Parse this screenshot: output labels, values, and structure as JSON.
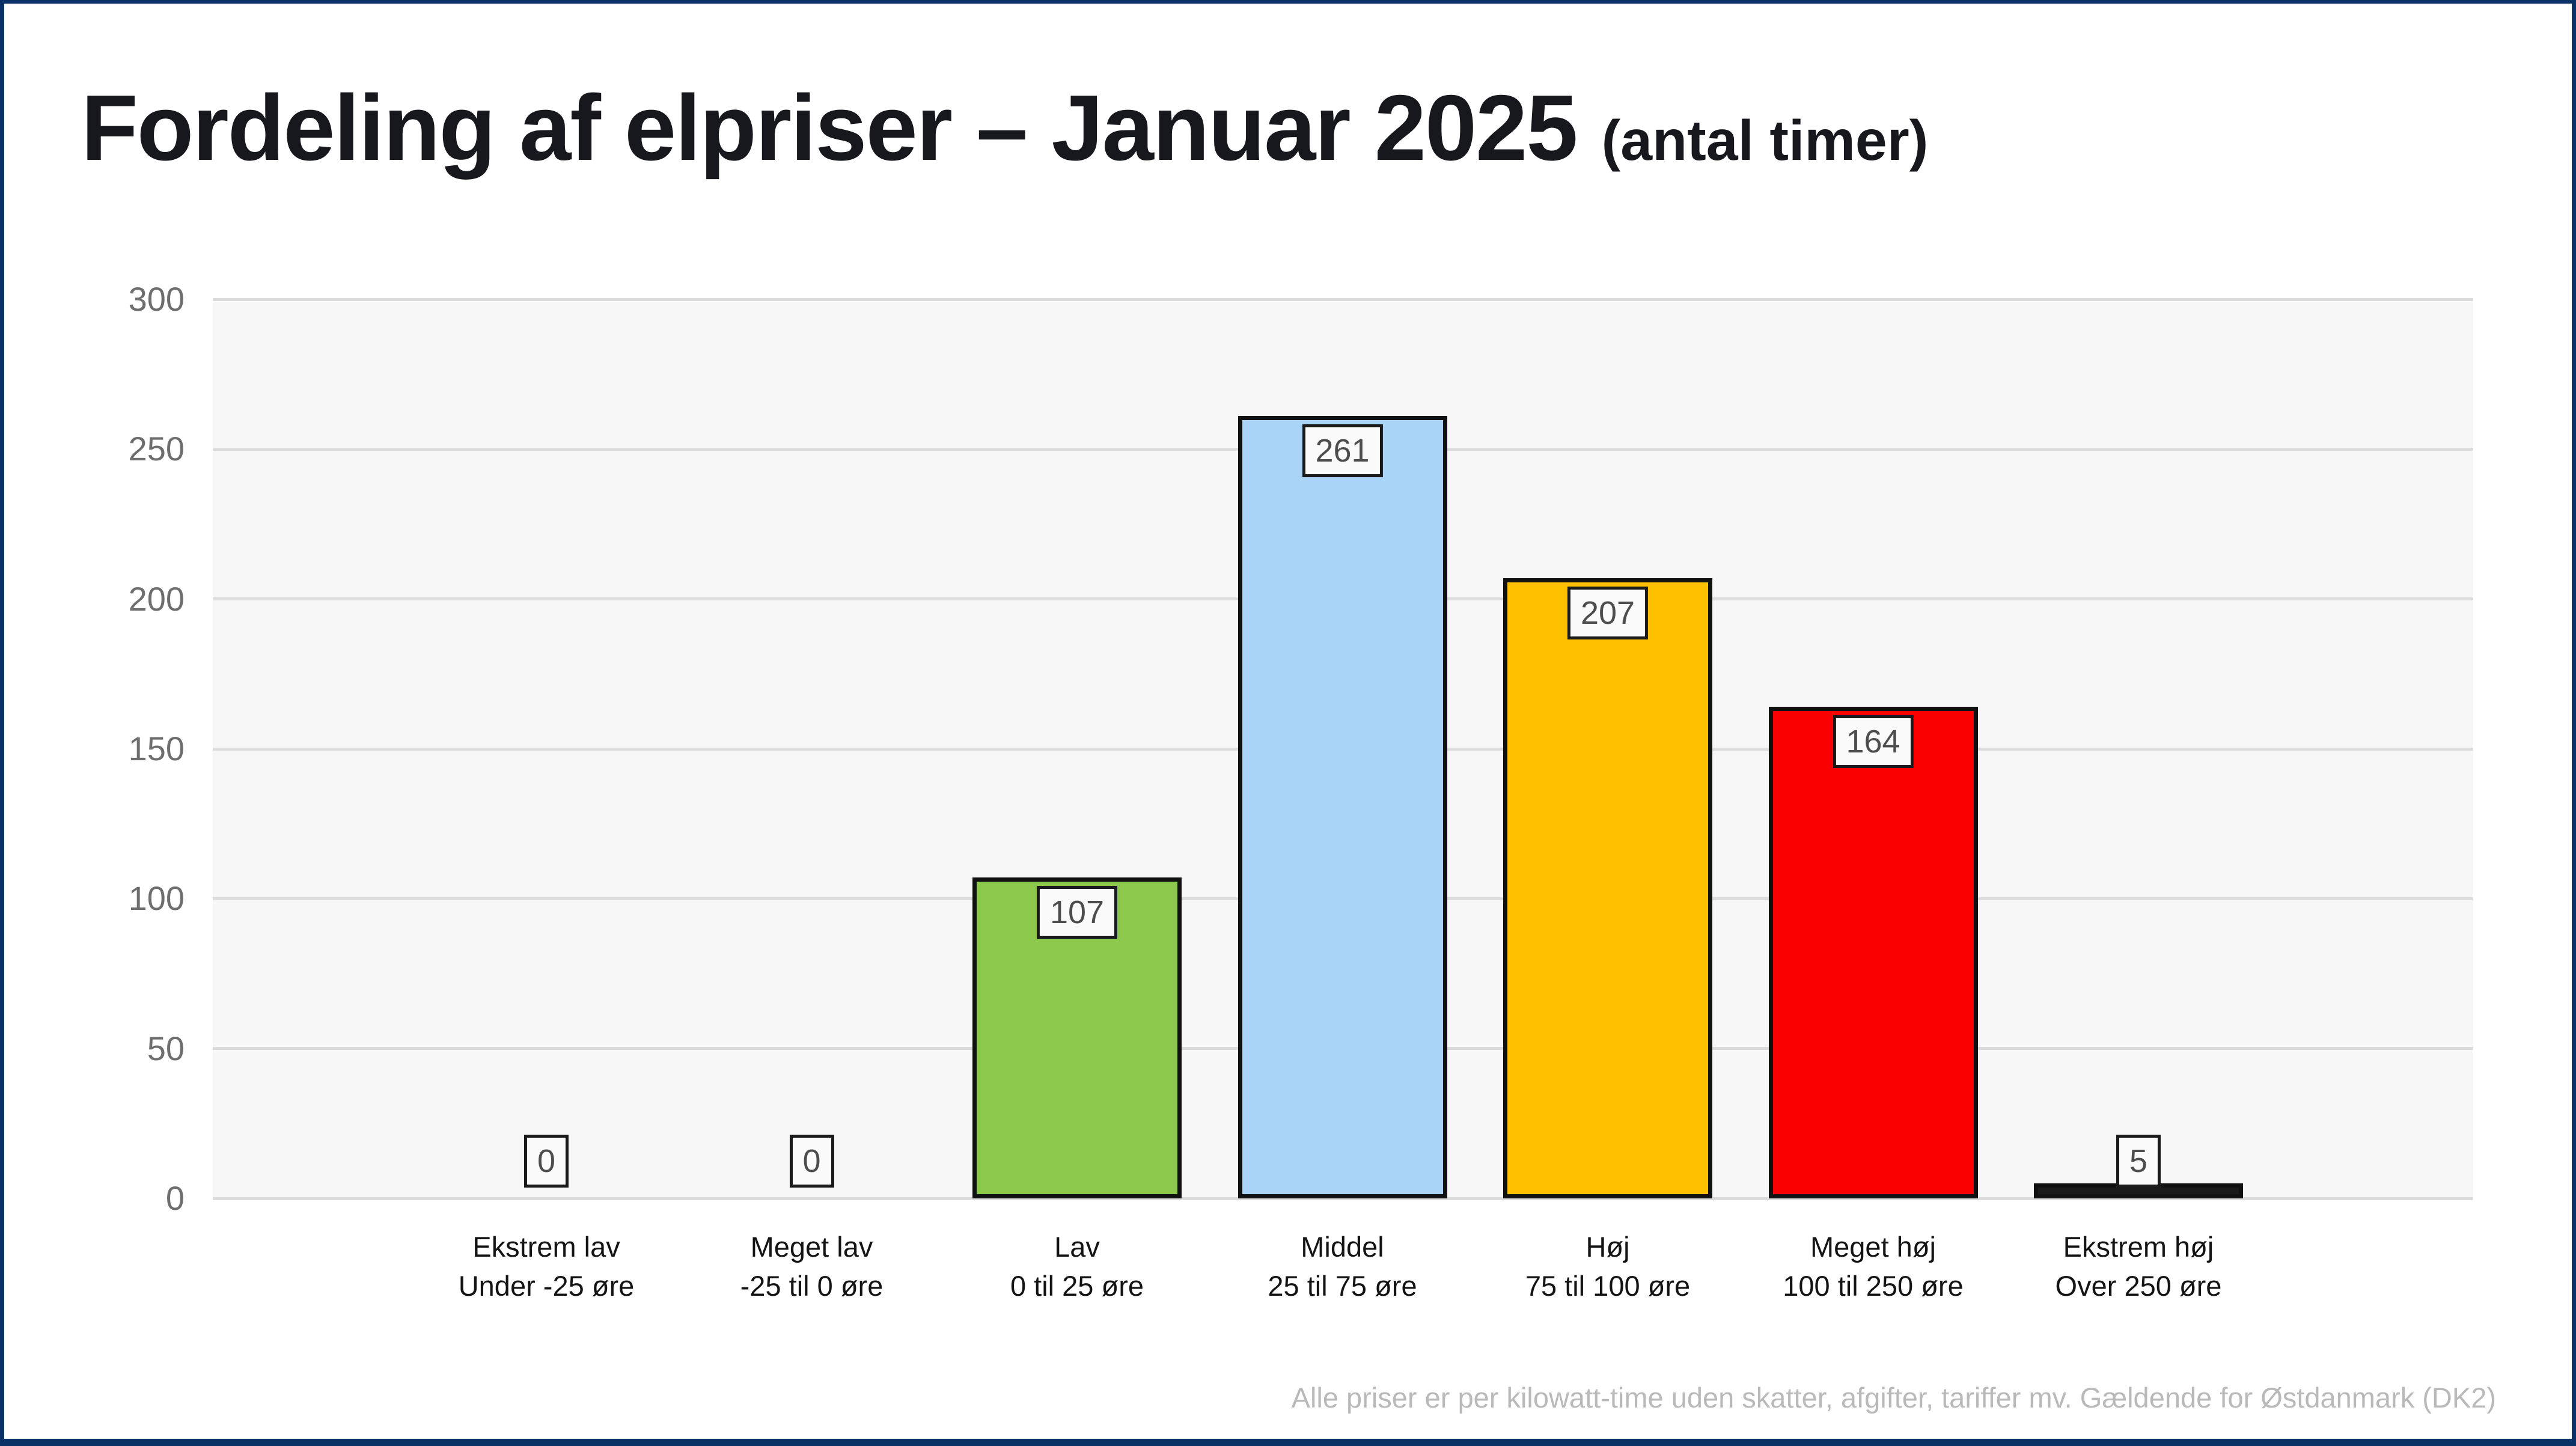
{
  "header": {
    "title": "Fordeling af elpriser – Januar 2025",
    "title_suffix": "(antal timer)"
  },
  "footer": {
    "note": "Alle priser er per kilowatt-time uden skatter, afgifter, tariffer mv. Gældende for Østdanmark (DK2)"
  },
  "colors": {
    "frame": "#0b3266",
    "plot_background": "#f7f7f7",
    "gridline": "#dcdcdc",
    "bar_border": "#111111",
    "value_label_text": "#4d4d4d",
    "axis_tick_text": "#6e6e6e"
  },
  "chart_data": {
    "type": "bar",
    "title": "Fordeling af elpriser – Januar 2025 (antal timer)",
    "categories": [
      "Ekstrem lav",
      "Meget lav",
      "Lav",
      "Middel",
      "Høj",
      "Meget høj",
      "Ekstrem høj"
    ],
    "category_sublabels": [
      "Under -25 øre",
      "-25 til 0 øre",
      "0 til 25 øre",
      "25 til 75 øre",
      "75 til 100 øre",
      "100 til 250 øre",
      "Over 250 øre"
    ],
    "category_keys": [
      "ekstrem-lav",
      "meget-lav",
      "lav",
      "middel",
      "hoj",
      "meget-hoj",
      "ekstrem-hoj"
    ],
    "values": [
      0,
      0,
      107,
      261,
      207,
      164,
      5
    ],
    "value_labels": [
      "0",
      "0",
      "107",
      "261",
      "207",
      "164",
      "5"
    ],
    "bar_colors": [
      null,
      null,
      "#8cc84b",
      "#aad4f7",
      "#ffc000",
      "#fb0000",
      "#1a1a1a"
    ],
    "xlabel": "",
    "ylabel": "",
    "ylim": [
      0,
      300
    ],
    "yticks": [
      0,
      50,
      100,
      150,
      200,
      250,
      300
    ],
    "grid": true,
    "legend": false
  }
}
